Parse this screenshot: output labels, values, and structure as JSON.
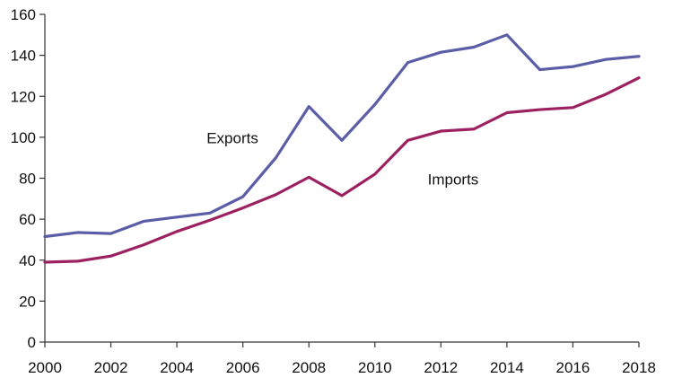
{
  "chart_data": {
    "type": "line",
    "x": [
      2000,
      2001,
      2002,
      2003,
      2004,
      2005,
      2006,
      2007,
      2008,
      2009,
      2010,
      2011,
      2012,
      2013,
      2014,
      2015,
      2016,
      2017,
      2018
    ],
    "series": [
      {
        "name": "Exports",
        "color": "#5b5ea6",
        "values": [
          51.5,
          53.5,
          53,
          59,
          61,
          63,
          71,
          90,
          115,
          98.5,
          116,
          136.5,
          141.5,
          144,
          150,
          133,
          134.5,
          138,
          139.5
        ]
      },
      {
        "name": "Imports",
        "color": "#9c2160",
        "values": [
          39,
          39.5,
          42,
          47.5,
          54,
          59.5,
          65.5,
          72,
          80.5,
          71.5,
          82,
          98.5,
          103,
          104,
          112,
          113.5,
          114.5,
          121,
          129
        ]
      }
    ],
    "x_ticks": [
      "2000",
      "2002",
      "2004",
      "2006",
      "2008",
      "2010",
      "2012",
      "2014",
      "2016",
      "2018"
    ],
    "y_ticks": [
      "0",
      "20",
      "40",
      "60",
      "80",
      "100",
      "120",
      "140",
      "160"
    ],
    "xlim": [
      2000,
      2018
    ],
    "ylim": [
      0,
      160
    ],
    "title": "",
    "xlabel": "",
    "ylabel": "",
    "grid": false,
    "legend": "none (inline series labels)"
  }
}
